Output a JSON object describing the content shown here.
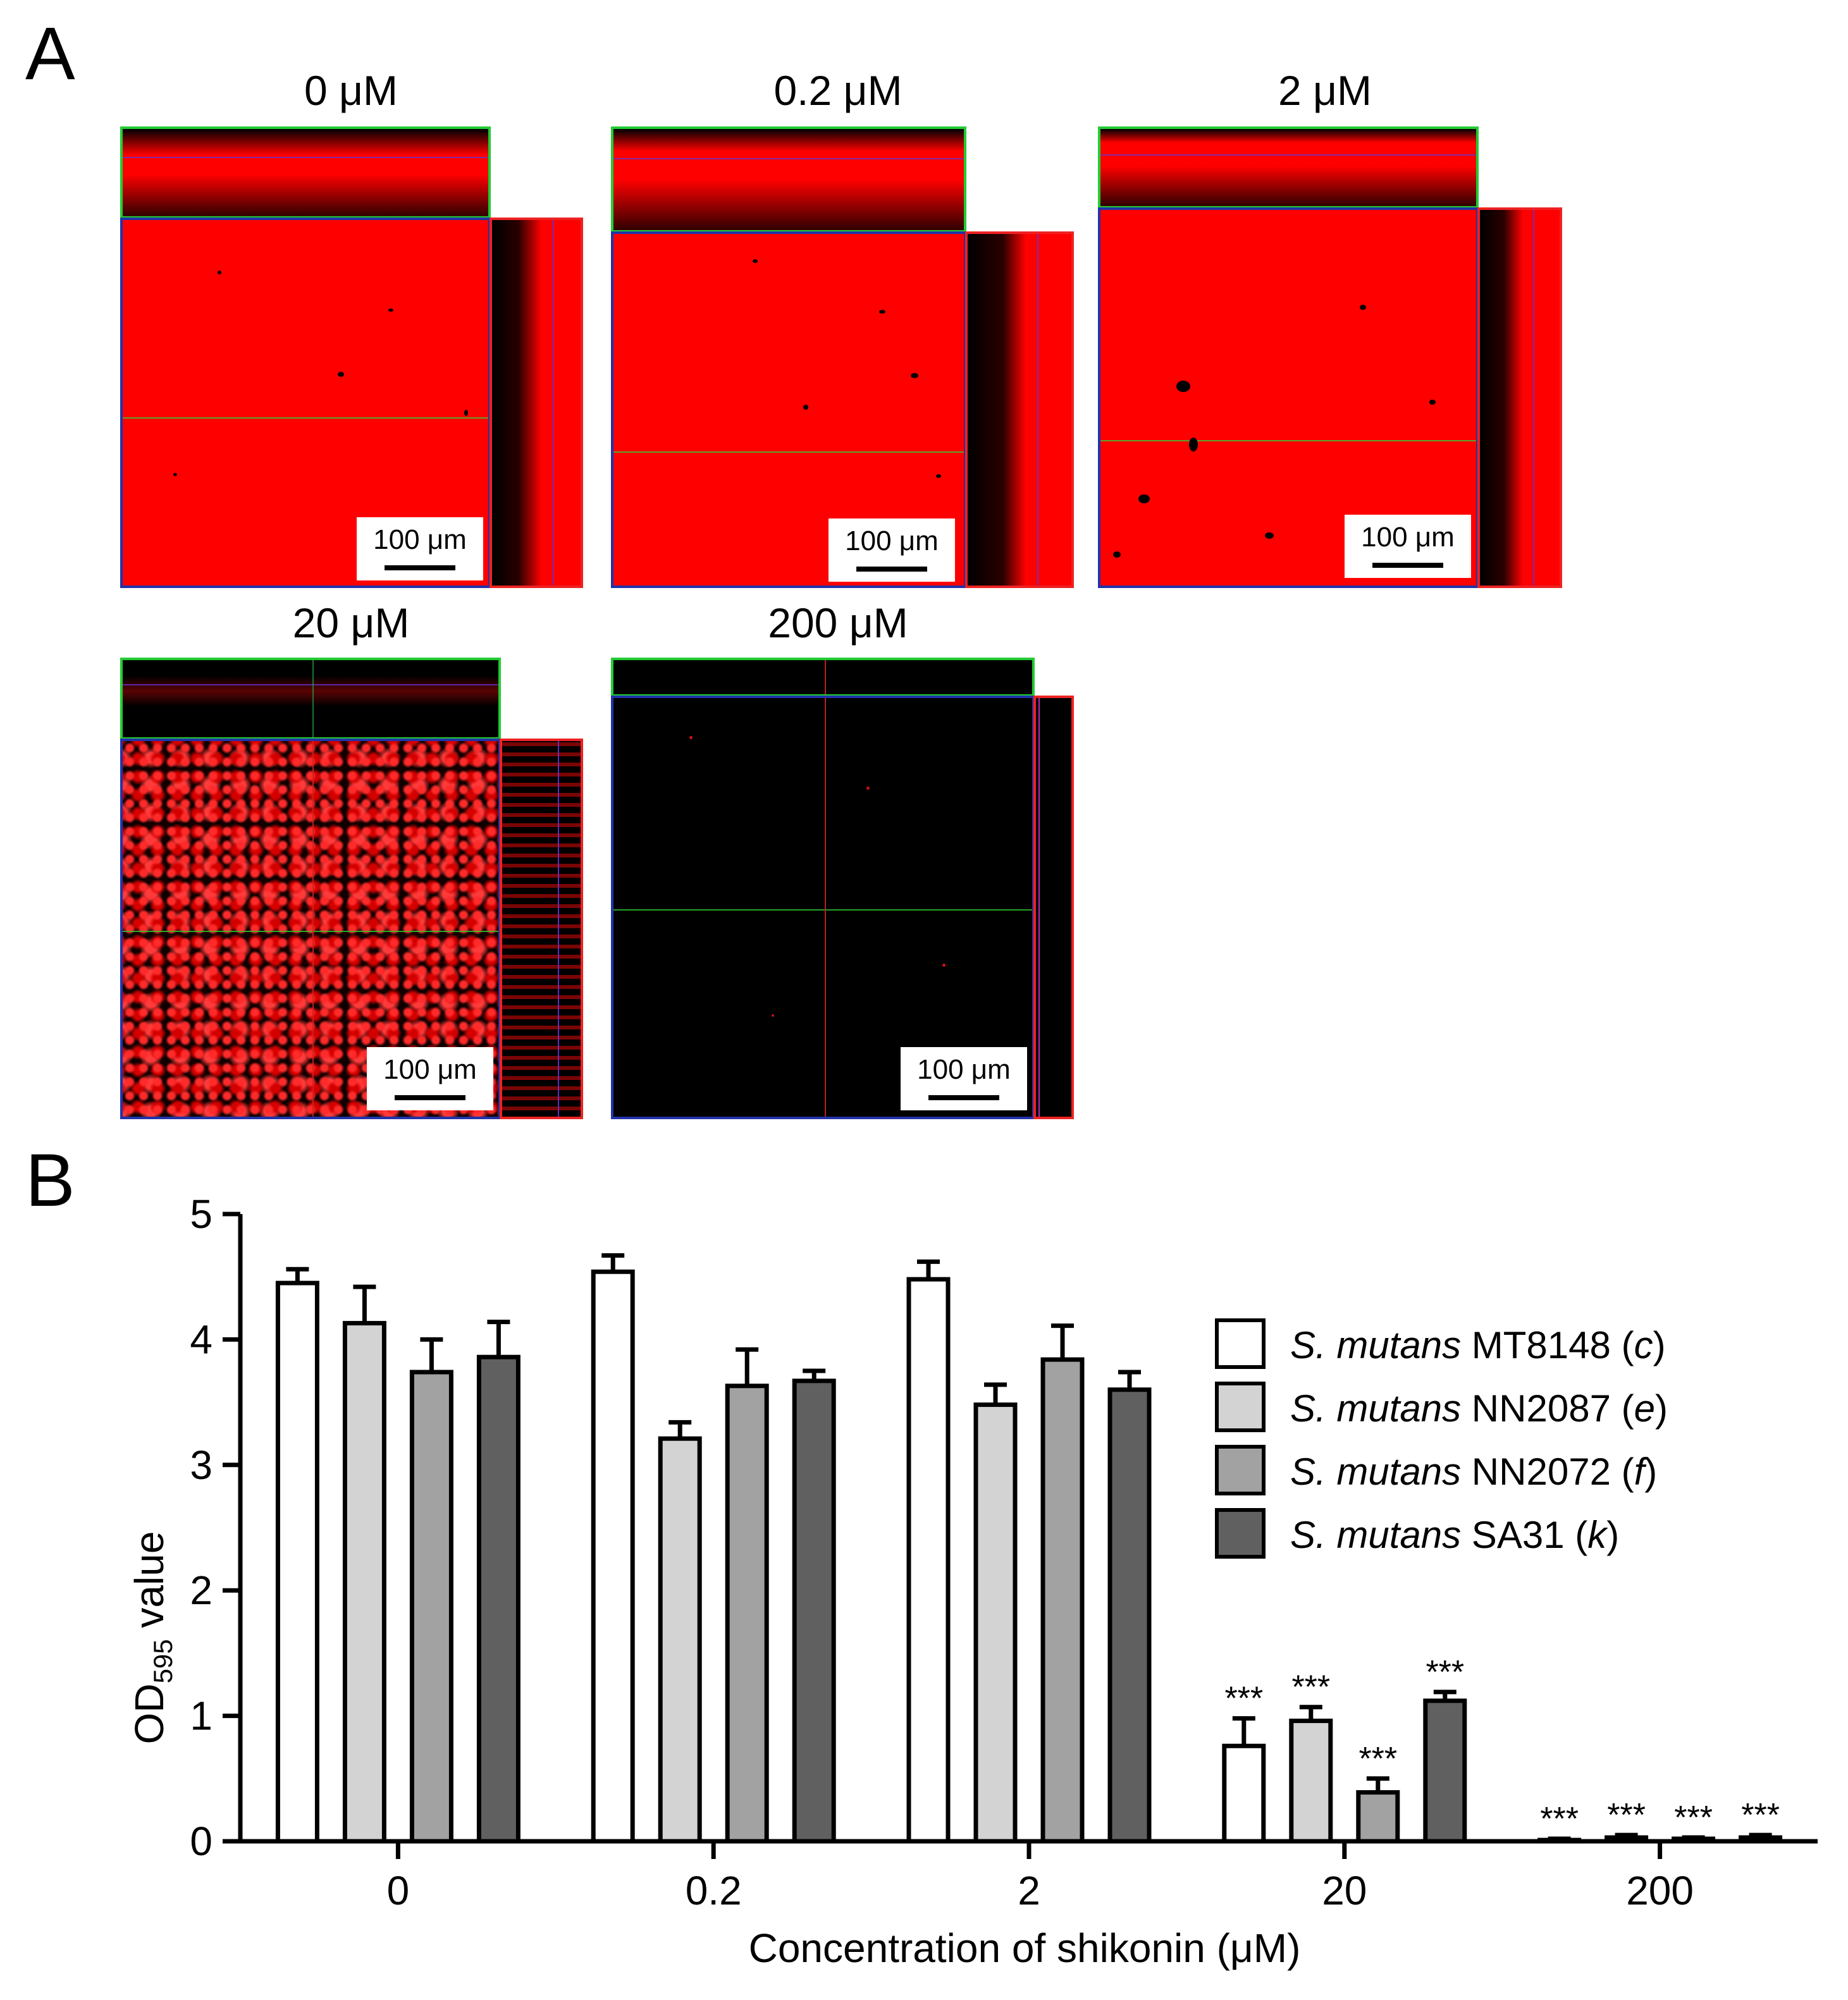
{
  "panel_a": {
    "letter": "A",
    "panels": [
      {
        "title": "0 μM",
        "scale": "100 μm"
      },
      {
        "title": "0.2 μM",
        "scale": "100 μm"
      },
      {
        "title": "2 μM",
        "scale": "100 μm"
      },
      {
        "title": "20 μM",
        "scale": "100 μm"
      },
      {
        "title": "200 μM",
        "scale": "100 μm"
      }
    ]
  },
  "panel_b": {
    "letter": "B"
  },
  "chart_data": {
    "type": "bar",
    "title": "",
    "xlabel": "Concentration of shikonin (μM)",
    "ylabel": "OD595 value",
    "ylabel_main": "OD",
    "ylabel_sub": "595",
    "ylabel_tail": " value",
    "ylim": [
      0,
      5
    ],
    "yticks": [
      "0",
      "1",
      "2",
      "3",
      "4",
      "5"
    ],
    "categories": [
      "0",
      "0.2",
      "2",
      "20",
      "200"
    ],
    "legend_position": "right",
    "significance_label": "***",
    "series": [
      {
        "name": "S. mutans MT8148 (c)",
        "species": "S. mutans",
        "strain": " MT8148 (",
        "code": "c",
        "close": ")",
        "color": "#ffffff",
        "values": [
          4.45,
          4.54,
          4.48,
          0.76,
          0.01
        ],
        "errors": [
          0.11,
          0.13,
          0.14,
          0.22,
          0.01
        ],
        "significant": [
          false,
          false,
          false,
          true,
          true
        ]
      },
      {
        "name": "S. mutans NN2087 (e)",
        "species": "S. mutans",
        "strain": " NN2087 (",
        "code": "e",
        "close": ")",
        "color": "#d3d3d3",
        "values": [
          4.13,
          3.21,
          3.48,
          0.96,
          0.03
        ],
        "errors": [
          0.29,
          0.13,
          0.16,
          0.11,
          0.02
        ],
        "significant": [
          false,
          false,
          false,
          true,
          true
        ]
      },
      {
        "name": "S. mutans NN2072 (f)",
        "species": "S. mutans",
        "strain": " NN2072 (",
        "code": "f",
        "close": ")",
        "color": "#a2a2a2",
        "values": [
          3.74,
          3.63,
          3.84,
          0.39,
          0.02
        ],
        "errors": [
          0.26,
          0.29,
          0.27,
          0.11,
          0.01
        ],
        "significant": [
          false,
          false,
          false,
          true,
          true
        ]
      },
      {
        "name": "S. mutans SA31 (k)",
        "species": "S. mutans",
        "strain": " SA31 (",
        "code": "k",
        "close": ")",
        "color": "#606060",
        "values": [
          3.86,
          3.67,
          3.6,
          1.12,
          0.03
        ],
        "errors": [
          0.28,
          0.08,
          0.14,
          0.07,
          0.02
        ],
        "significant": [
          false,
          false,
          false,
          true,
          true
        ]
      }
    ]
  }
}
